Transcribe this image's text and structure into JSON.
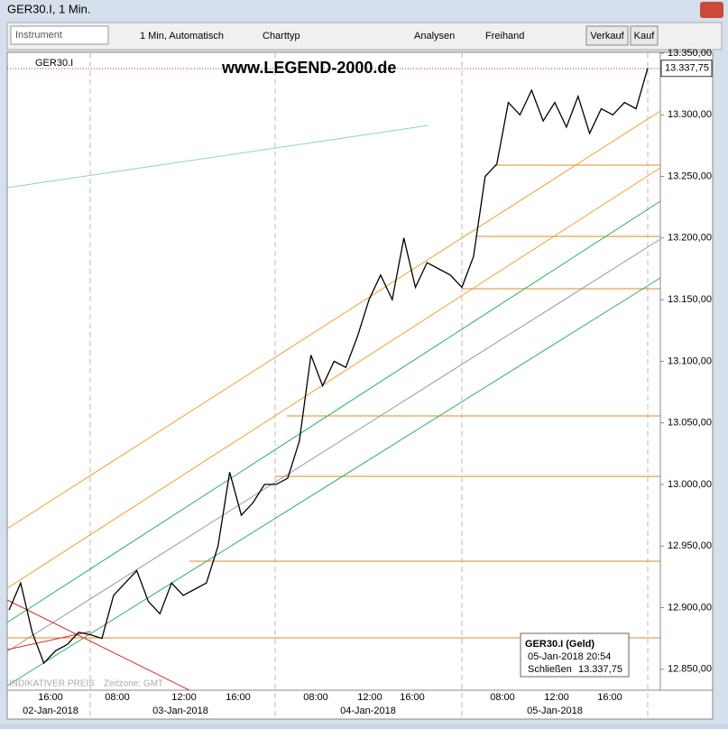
{
  "window": {
    "title": "GER30.I, 1 Min."
  },
  "toolbar": {
    "instrument": "Instrument",
    "interval": "1 Min, Automatisch",
    "chart_type": "Charttyp",
    "analysis": "Analysen",
    "freehand": "Freihand",
    "sell": "Verkauf",
    "buy": "Kauf"
  },
  "chart_data": {
    "type": "line",
    "title": "GER30.I",
    "watermark": "www.LEGEND-2000.de",
    "color": "#000000",
    "values": [
      12898,
      12920,
      12880,
      12855,
      12865,
      12870,
      12880,
      12878,
      12875,
      12910,
      12920,
      12930,
      12905,
      12895,
      12920,
      12910,
      12915,
      12920,
      12950,
      13010,
      12975,
      12985,
      13000,
      13000,
      13005,
      13035,
      13105,
      13080,
      13100,
      13095,
      13120,
      13150,
      13170,
      13150,
      13200,
      13160,
      13180,
      13175,
      13170,
      13160,
      13185,
      13250,
      13260,
      13310,
      13300,
      13320,
      13295,
      13310,
      13290,
      13315,
      13285,
      13305,
      13300,
      13310,
      13305,
      13338
    ],
    "ylim": [
      12833,
      13350
    ],
    "yticks": [
      {
        "value": 12850,
        "label": "12.850,00"
      },
      {
        "value": 12900,
        "label": "12.900,00"
      },
      {
        "value": 12950,
        "label": "12.950,00"
      },
      {
        "value": 13000,
        "label": "13.000,00"
      },
      {
        "value": 13050,
        "label": "13.050,00"
      },
      {
        "value": 13100,
        "label": "13.100,00"
      },
      {
        "value": 13150,
        "label": "13.150,00"
      },
      {
        "value": 13200,
        "label": "13.200,00"
      },
      {
        "value": 13250,
        "label": "13.250,00"
      },
      {
        "value": 13300,
        "label": "13.300,00"
      },
      {
        "value": 13350,
        "label": "13.350,00"
      }
    ],
    "last_price": {
      "value": 13337.75,
      "label": "13.337,75"
    },
    "x_time_labels": [
      "16:00",
      "08:00",
      "12:00",
      "16:00",
      "08:00",
      "12:00",
      "16:00",
      "08:00",
      "12:00",
      "16:00"
    ],
    "x_date_labels": [
      "02-Jan-2018",
      "03-Jan-2018",
      "04-Jan-2018",
      "05-Jan-2018"
    ],
    "footer_labels": [
      "INDIKATIVER PREIS",
      "Zeitzone: GMT"
    ],
    "info_box": {
      "title": "GER30.I (Geld)",
      "date": "05-Jan-2018 20:54",
      "close_label": "Schließen",
      "close_value": "13.337,75"
    }
  }
}
